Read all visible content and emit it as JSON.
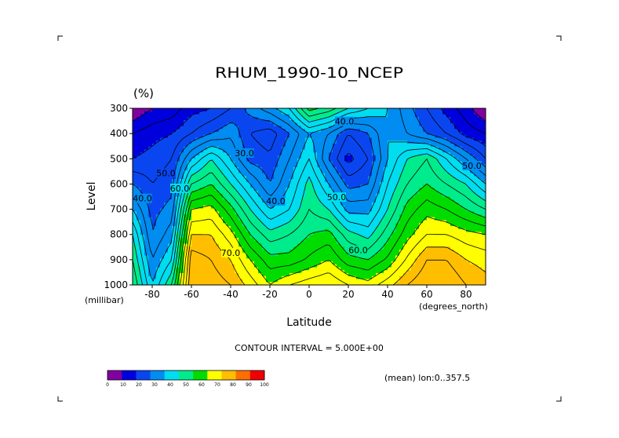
{
  "chart_data": {
    "type": "heatmap",
    "title": "RHUM_1990-10_NCEP",
    "units_label": "(%)",
    "xlabel": "Latitude",
    "xunits": "(degrees_north)",
    "ylabel": "Level",
    "yunits": "(millibar)",
    "xlim": [
      -90,
      90
    ],
    "ylim": [
      1000,
      300
    ],
    "x_ticks": [
      -80,
      -60,
      -40,
      -20,
      0,
      20,
      40,
      60,
      80
    ],
    "x_tick_labels": [
      "-80",
      "-60",
      "-40",
      "-20",
      "0",
      "20",
      "40",
      "60",
      "80"
    ],
    "y_ticks": [
      300,
      400,
      500,
      600,
      700,
      800,
      900,
      1000
    ],
    "y_tick_labels": [
      "300",
      "400",
      "500",
      "600",
      "700",
      "800",
      "900",
      "1000"
    ],
    "x": [
      -90,
      -80,
      -70,
      -60,
      -50,
      -40,
      -30,
      -20,
      -10,
      0,
      10,
      20,
      30,
      40,
      50,
      60,
      70,
      80,
      90
    ],
    "y": [
      300,
      400,
      500,
      600,
      700,
      800,
      900,
      1000
    ],
    "z": [
      [
        5,
        10,
        12,
        18,
        20,
        25,
        32,
        38,
        45,
        62,
        58,
        50,
        45,
        40,
        32,
        25,
        18,
        12,
        5
      ],
      [
        15,
        18,
        20,
        25,
        30,
        34,
        25,
        22,
        30,
        40,
        35,
        25,
        30,
        40,
        35,
        30,
        25,
        18,
        15
      ],
      [
        20,
        22,
        25,
        40,
        50,
        40,
        28,
        26,
        35,
        45,
        30,
        18,
        25,
        40,
        50,
        55,
        45,
        35,
        25
      ],
      [
        30,
        25,
        28,
        55,
        60,
        50,
        40,
        30,
        40,
        52,
        40,
        28,
        30,
        45,
        55,
        60,
        55,
        50,
        40
      ],
      [
        40,
        28,
        32,
        70,
        72,
        62,
        50,
        40,
        45,
        55,
        50,
        38,
        38,
        50,
        62,
        68,
        65,
        60,
        55
      ],
      [
        50,
        30,
        38,
        80,
        80,
        72,
        60,
        52,
        55,
        60,
        62,
        52,
        48,
        58,
        68,
        75,
        75,
        72,
        70
      ],
      [
        55,
        35,
        45,
        88,
        85,
        80,
        70,
        62,
        62,
        66,
        70,
        62,
        60,
        66,
        76,
        85,
        85,
        80,
        78
      ],
      [
        60,
        40,
        55,
        90,
        88,
        85,
        78,
        70,
        75,
        78,
        80,
        75,
        72,
        78,
        85,
        90,
        90,
        85,
        82
      ]
    ],
    "contour_labels": [
      {
        "text": "40.0",
        "x": 18,
        "p": 355
      },
      {
        "text": "30.0",
        "x": -33,
        "p": 480
      },
      {
        "text": "50.0",
        "x": 83,
        "p": 530
      },
      {
        "text": "50.0",
        "x": -73,
        "p": 560
      },
      {
        "text": "60.0",
        "x": -66,
        "p": 620
      },
      {
        "text": "40.0",
        "x": -85,
        "p": 660
      },
      {
        "text": "40.0",
        "x": -17,
        "p": 670
      },
      {
        "text": "50.0",
        "x": 14,
        "p": 655
      },
      {
        "text": "70.0",
        "x": -40,
        "p": 875
      },
      {
        "text": "60.0",
        "x": 25,
        "p": 865
      }
    ],
    "colorbar": {
      "levels": [
        0,
        10,
        20,
        30,
        40,
        50,
        60,
        70,
        80,
        90,
        100
      ],
      "tick_labels": [
        "0",
        "10",
        "20",
        "30",
        "40",
        "50",
        "60",
        "70",
        "80",
        "90",
        "100"
      ],
      "colors": [
        "#8200a0",
        "#0000dc",
        "#0a46f0",
        "#008cf0",
        "#00dcf0",
        "#00eb8c",
        "#00dc00",
        "#ffff00",
        "#ffbe00",
        "#ff6e00",
        "#f00000"
      ]
    },
    "contour_interval_text": "CONTOUR INTERVAL = 5.000E+00",
    "mean_text": "(mean) lon:0..357.5"
  }
}
